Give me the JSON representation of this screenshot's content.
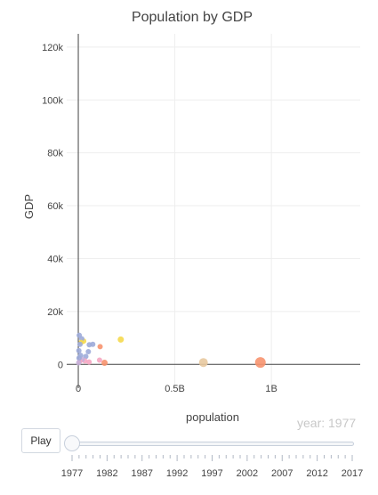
{
  "chart_data": {
    "type": "scatter",
    "title": "Population by GDP",
    "xlabel": "population",
    "ylabel": "GDP",
    "xlim": [
      -60000000,
      1460000000
    ],
    "ylim": [
      -9000,
      125000
    ],
    "x_ticks": [
      {
        "value": 0,
        "label": "0"
      },
      {
        "value": 500000000,
        "label": "0.5B"
      },
      {
        "value": 1000000000,
        "label": "1B"
      }
    ],
    "y_ticks": [
      {
        "value": 0,
        "label": "0"
      },
      {
        "value": 20000,
        "label": "20k"
      },
      {
        "value": 40000,
        "label": "40k"
      },
      {
        "value": 60000,
        "label": "60k"
      },
      {
        "value": 80000,
        "label": "80k"
      },
      {
        "value": 100000,
        "label": "100k"
      },
      {
        "value": 120000,
        "label": "120k"
      }
    ],
    "grid": true,
    "points": [
      {
        "x": 943000000,
        "y": 740,
        "size": 11,
        "color": "#f7946f"
      },
      {
        "x": 648000000,
        "y": 700,
        "size": 9,
        "color": "#e8c9a0"
      },
      {
        "x": 220000000,
        "y": 9400,
        "size": 6,
        "color": "#f5d94e"
      },
      {
        "x": 136000000,
        "y": 600,
        "size": 6,
        "color": "#f7946f"
      },
      {
        "x": 113000000,
        "y": 6700,
        "size": 5,
        "color": "#f7946f"
      },
      {
        "x": 110000000,
        "y": 1600,
        "size": 5,
        "color": "#f5a6c2"
      },
      {
        "x": 75000000,
        "y": 7600,
        "size": 5,
        "color": "#9dabd9"
      },
      {
        "x": 57000000,
        "y": 7400,
        "size": 5,
        "color": "#9dabd9"
      },
      {
        "x": 52000000,
        "y": 4800,
        "size": 5,
        "color": "#9dabd9"
      },
      {
        "x": 56000000,
        "y": 900,
        "size": 5,
        "color": "#f5a6c2"
      },
      {
        "x": 39000000,
        "y": 3000,
        "size": 5,
        "color": "#9dabd9"
      },
      {
        "x": 34000000,
        "y": 1300,
        "size": 5,
        "color": "#f5a6c2"
      },
      {
        "x": 28000000,
        "y": 8800,
        "size": 5,
        "color": "#f5d94e"
      },
      {
        "x": 18000000,
        "y": 9700,
        "size": 5,
        "color": "#9dabd9"
      },
      {
        "x": 15000000,
        "y": 8300,
        "size": 5,
        "color": "#f5d94e"
      },
      {
        "x": 9000000,
        "y": 7600,
        "size": 5,
        "color": "#9dabd9"
      },
      {
        "x": 5000000,
        "y": 11000,
        "size": 5,
        "color": "#9dabd9"
      },
      {
        "x": 12000000,
        "y": 3400,
        "size": 5,
        "color": "#9dabd9"
      },
      {
        "x": 20000000,
        "y": 1800,
        "size": 5,
        "color": "#c7b0d9"
      },
      {
        "x": 8000000,
        "y": 1200,
        "size": 5,
        "color": "#f5a6c2"
      },
      {
        "x": 4000000,
        "y": 2400,
        "size": 5,
        "color": "#9dabd9"
      },
      {
        "x": 3000000,
        "y": 5200,
        "size": 5,
        "color": "#9dabd9"
      },
      {
        "x": 2000000,
        "y": 600,
        "size": 5,
        "color": "#c7b0d9"
      }
    ]
  },
  "year_display": "year: 1977",
  "controls": {
    "play_label": "Play",
    "slider_min": 1977,
    "slider_max": 2017,
    "slider_value": 1977,
    "slider_ticks": [
      "1977",
      "1982",
      "1987",
      "1992",
      "1997",
      "2002",
      "2007",
      "2012",
      "2017"
    ]
  }
}
